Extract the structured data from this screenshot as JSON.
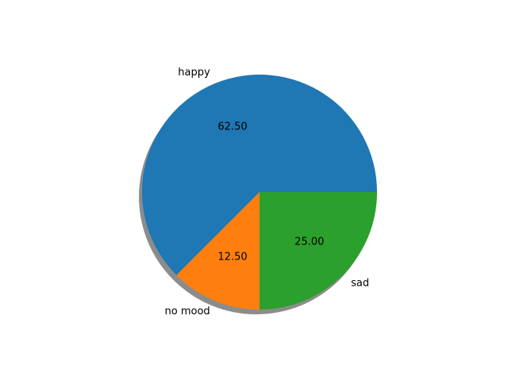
{
  "chart_data": {
    "type": "pie",
    "categories": [
      "happy",
      "no mood",
      "sad"
    ],
    "values": [
      62.5,
      12.5,
      25.0
    ],
    "value_labels": [
      "62.50",
      "12.50",
      "25.00"
    ],
    "colors": [
      "#1f77b4",
      "#ff7f0e",
      "#2ca02c"
    ],
    "title": "",
    "shadow": true,
    "start_angle_deg": 0,
    "direction": "counterclockwise"
  }
}
